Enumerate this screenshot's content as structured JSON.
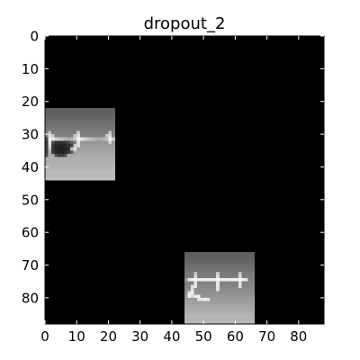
{
  "chart_data": {
    "type": "heatmap",
    "title": "dropout_2",
    "xlabel": "",
    "ylabel": "",
    "xlim": [
      0,
      88
    ],
    "ylim": [
      88,
      0
    ],
    "x_ticks": [
      0,
      10,
      20,
      30,
      40,
      50,
      60,
      70,
      80
    ],
    "y_ticks": [
      0,
      10,
      20,
      30,
      40,
      50,
      60,
      70,
      80
    ],
    "colormap": "gray",
    "background_value": 0,
    "grid": false,
    "patches": [
      {
        "x_range": [
          0,
          22
        ],
        "y_range": [
          22,
          44
        ],
        "rows": [
          [
            95,
            95,
            95,
            95,
            95,
            95,
            95,
            95,
            95,
            95,
            95,
            95,
            95,
            95,
            95,
            95,
            95,
            95,
            95,
            95,
            95,
            95
          ],
          [
            95,
            95,
            95,
            95,
            95,
            95,
            95,
            95,
            95,
            95,
            95,
            95,
            95,
            95,
            95,
            95,
            95,
            95,
            95,
            95,
            95,
            95
          ],
          [
            100,
            100,
            100,
            100,
            100,
            100,
            100,
            100,
            100,
            100,
            100,
            100,
            100,
            100,
            100,
            100,
            100,
            100,
            100,
            100,
            100,
            100
          ],
          [
            105,
            105,
            105,
            105,
            105,
            105,
            105,
            105,
            105,
            105,
            105,
            105,
            105,
            105,
            105,
            105,
            105,
            105,
            105,
            105,
            105,
            105
          ],
          [
            110,
            110,
            110,
            110,
            110,
            110,
            110,
            110,
            110,
            110,
            110,
            110,
            110,
            110,
            110,
            110,
            110,
            110,
            110,
            110,
            110,
            110
          ],
          [
            115,
            115,
            115,
            115,
            115,
            115,
            115,
            115,
            115,
            115,
            115,
            115,
            115,
            115,
            115,
            115,
            115,
            115,
            115,
            115,
            115,
            115
          ],
          [
            120,
            120,
            120,
            120,
            120,
            120,
            120,
            120,
            120,
            120,
            120,
            120,
            120,
            120,
            120,
            120,
            120,
            120,
            120,
            120,
            120,
            120
          ],
          [
            125,
            200,
            125,
            125,
            125,
            125,
            125,
            125,
            125,
            125,
            200,
            125,
            125,
            125,
            125,
            125,
            125,
            125,
            125,
            125,
            200,
            125
          ],
          [
            130,
            220,
            200,
            130,
            130,
            130,
            130,
            130,
            130,
            200,
            220,
            130,
            130,
            130,
            130,
            130,
            130,
            130,
            130,
            200,
            220,
            130
          ],
          [
            70,
            240,
            230,
            210,
            200,
            190,
            180,
            170,
            180,
            200,
            240,
            230,
            210,
            200,
            190,
            180,
            170,
            170,
            180,
            190,
            240,
            200
          ],
          [
            60,
            230,
            80,
            50,
            45,
            45,
            50,
            70,
            90,
            120,
            220,
            150,
            150,
            150,
            150,
            150,
            150,
            150,
            150,
            150,
            210,
            150
          ],
          [
            60,
            220,
            60,
            40,
            35,
            35,
            40,
            50,
            60,
            200,
            220,
            155,
            155,
            155,
            155,
            155,
            155,
            155,
            155,
            155,
            155,
            155
          ],
          [
            60,
            200,
            55,
            35,
            30,
            30,
            35,
            45,
            180,
            220,
            160,
            160,
            160,
            160,
            160,
            160,
            160,
            160,
            160,
            160,
            160,
            160
          ],
          [
            70,
            180,
            60,
            40,
            35,
            35,
            40,
            60,
            90,
            165,
            165,
            165,
            165,
            165,
            165,
            165,
            165,
            165,
            165,
            165,
            165,
            165
          ],
          [
            80,
            170,
            170,
            80,
            60,
            60,
            80,
            170,
            170,
            170,
            170,
            170,
            170,
            170,
            170,
            170,
            170,
            170,
            170,
            170,
            170,
            170
          ],
          [
            175,
            175,
            175,
            175,
            175,
            175,
            175,
            175,
            175,
            175,
            175,
            175,
            175,
            175,
            175,
            175,
            175,
            175,
            175,
            175,
            175,
            175
          ],
          [
            175,
            175,
            175,
            175,
            175,
            175,
            175,
            175,
            175,
            175,
            175,
            175,
            175,
            175,
            175,
            175,
            175,
            175,
            175,
            175,
            175,
            175
          ],
          [
            180,
            180,
            180,
            180,
            180,
            180,
            180,
            180,
            180,
            180,
            180,
            180,
            180,
            180,
            180,
            180,
            180,
            180,
            180,
            180,
            180,
            180
          ],
          [
            180,
            180,
            180,
            180,
            180,
            180,
            180,
            180,
            180,
            180,
            180,
            180,
            180,
            180,
            180,
            180,
            180,
            180,
            180,
            180,
            180,
            180
          ],
          [
            185,
            185,
            185,
            185,
            185,
            185,
            185,
            185,
            185,
            185,
            185,
            185,
            185,
            185,
            185,
            185,
            185,
            185,
            185,
            185,
            185,
            185
          ],
          [
            185,
            185,
            185,
            185,
            185,
            185,
            185,
            185,
            185,
            185,
            185,
            185,
            185,
            185,
            185,
            185,
            185,
            185,
            185,
            185,
            185,
            185
          ],
          [
            190,
            190,
            190,
            190,
            190,
            190,
            190,
            190,
            190,
            190,
            190,
            190,
            190,
            190,
            190,
            190,
            190,
            190,
            190,
            190,
            190,
            190
          ]
        ]
      },
      {
        "x_range": [
          44,
          66
        ],
        "y_range": [
          66,
          88
        ],
        "rows": [
          [
            95,
            95,
            95,
            95,
            95,
            95,
            95,
            95,
            95,
            95,
            95,
            95,
            95,
            95,
            95,
            95,
            95,
            95,
            95,
            95,
            95,
            95
          ],
          [
            95,
            95,
            95,
            95,
            95,
            95,
            95,
            95,
            95,
            95,
            95,
            95,
            95,
            95,
            95,
            95,
            95,
            95,
            95,
            95,
            95,
            95
          ],
          [
            100,
            100,
            100,
            100,
            100,
            100,
            100,
            100,
            100,
            100,
            100,
            100,
            100,
            100,
            100,
            100,
            100,
            100,
            100,
            100,
            100,
            100
          ],
          [
            105,
            105,
            105,
            105,
            105,
            105,
            105,
            105,
            105,
            105,
            105,
            105,
            105,
            105,
            105,
            105,
            105,
            105,
            105,
            105,
            105,
            105
          ],
          [
            110,
            110,
            110,
            110,
            110,
            110,
            110,
            110,
            110,
            110,
            110,
            110,
            110,
            110,
            110,
            110,
            110,
            110,
            110,
            110,
            110,
            110
          ],
          [
            115,
            115,
            115,
            115,
            115,
            115,
            115,
            115,
            115,
            115,
            115,
            115,
            115,
            115,
            115,
            115,
            115,
            115,
            115,
            115,
            115,
            115
          ],
          [
            120,
            120,
            120,
            200,
            120,
            120,
            120,
            120,
            120,
            120,
            200,
            120,
            120,
            120,
            120,
            120,
            120,
            200,
            120,
            120,
            120,
            120
          ],
          [
            125,
            125,
            125,
            220,
            125,
            125,
            125,
            125,
            125,
            125,
            220,
            125,
            125,
            125,
            125,
            125,
            125,
            220,
            125,
            125,
            125,
            125
          ],
          [
            150,
            230,
            240,
            245,
            240,
            240,
            240,
            240,
            240,
            240,
            245,
            240,
            240,
            240,
            240,
            240,
            240,
            245,
            240,
            230,
            125,
            125
          ],
          [
            130,
            130,
            130,
            230,
            130,
            130,
            130,
            130,
            130,
            130,
            230,
            130,
            130,
            130,
            130,
            130,
            130,
            230,
            130,
            130,
            130,
            130
          ],
          [
            135,
            135,
            225,
            225,
            135,
            135,
            135,
            135,
            135,
            135,
            230,
            135,
            135,
            135,
            135,
            135,
            135,
            225,
            135,
            135,
            135,
            135
          ],
          [
            140,
            140,
            225,
            140,
            140,
            140,
            140,
            140,
            140,
            140,
            230,
            140,
            140,
            140,
            140,
            140,
            140,
            140,
            140,
            140,
            140,
            140
          ],
          [
            145,
            230,
            240,
            145,
            145,
            145,
            145,
            145,
            145,
            145,
            145,
            145,
            145,
            145,
            145,
            145,
            145,
            145,
            145,
            145,
            145,
            145
          ],
          [
            150,
            240,
            210,
            235,
            240,
            150,
            150,
            150,
            150,
            150,
            150,
            150,
            150,
            150,
            150,
            150,
            150,
            150,
            150,
            150,
            150,
            150
          ],
          [
            155,
            155,
            155,
            155,
            225,
            230,
            240,
            235,
            155,
            155,
            155,
            155,
            155,
            155,
            155,
            155,
            155,
            155,
            155,
            155,
            155,
            155
          ],
          [
            160,
            160,
            160,
            160,
            160,
            160,
            160,
            160,
            160,
            160,
            160,
            160,
            160,
            160,
            160,
            160,
            160,
            160,
            160,
            160,
            160,
            160
          ],
          [
            165,
            165,
            165,
            165,
            165,
            165,
            165,
            165,
            165,
            165,
            165,
            165,
            165,
            165,
            165,
            165,
            165,
            165,
            165,
            165,
            165,
            165
          ],
          [
            170,
            170,
            170,
            170,
            170,
            170,
            170,
            170,
            170,
            170,
            170,
            170,
            170,
            170,
            170,
            170,
            170,
            170,
            170,
            170,
            170,
            170
          ],
          [
            175,
            175,
            175,
            175,
            175,
            175,
            175,
            175,
            175,
            175,
            175,
            175,
            175,
            175,
            175,
            175,
            175,
            175,
            175,
            175,
            175,
            175
          ],
          [
            180,
            180,
            180,
            180,
            180,
            180,
            180,
            180,
            180,
            180,
            180,
            180,
            180,
            180,
            180,
            180,
            180,
            180,
            180,
            180,
            180,
            180
          ],
          [
            180,
            180,
            180,
            180,
            180,
            180,
            180,
            180,
            180,
            180,
            180,
            180,
            180,
            180,
            180,
            180,
            180,
            180,
            180,
            180,
            180,
            180
          ],
          [
            185,
            185,
            185,
            185,
            185,
            185,
            185,
            185,
            185,
            185,
            185,
            185,
            185,
            185,
            185,
            185,
            185,
            185,
            185,
            185,
            185,
            185
          ]
        ]
      }
    ]
  }
}
